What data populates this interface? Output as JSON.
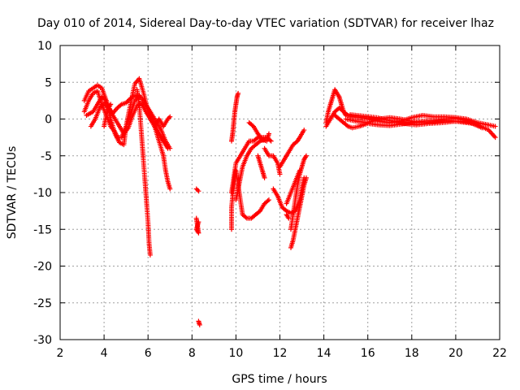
{
  "chart_data": {
    "type": "scatter",
    "title": "Day 010 of 2014, Sidereal Day-to-day VTEC variation (SDTVAR) for receiver lhaz",
    "xlabel": "GPS time / hours",
    "ylabel": "SDTVAR / TECUs",
    "xlim": [
      2,
      22
    ],
    "ylim": [
      -30,
      10
    ],
    "xticks": [
      2,
      4,
      6,
      8,
      10,
      12,
      14,
      16,
      18,
      20,
      22
    ],
    "yticks": [
      10,
      5,
      0,
      -5,
      -10,
      -15,
      -20,
      -25,
      -30
    ],
    "grid": true,
    "marker": "plus",
    "series": [
      {
        "name": "SDTVAR",
        "color": "#ff0000",
        "tracks": [
          [
            [
              3.1,
              2.5
            ],
            [
              3.3,
              3.8
            ],
            [
              3.5,
              4.2
            ],
            [
              3.7,
              4.6
            ],
            [
              3.9,
              4.2
            ],
            [
              4.1,
              2.5
            ],
            [
              4.3,
              0.0
            ],
            [
              4.5,
              -2.0
            ],
            [
              4.7,
              -3.2
            ],
            [
              4.9,
              -3.5
            ],
            [
              5.0,
              -1.0
            ],
            [
              5.2,
              2.0
            ],
            [
              5.4,
              4.8
            ],
            [
              5.6,
              5.5
            ],
            [
              5.8,
              3.5
            ],
            [
              6.0,
              1.0
            ],
            [
              6.3,
              -1.0
            ],
            [
              6.6,
              -2.5
            ],
            [
              6.9,
              -4.0
            ]
          ],
          [
            [
              3.1,
              1.0
            ],
            [
              3.3,
              2.5
            ],
            [
              3.5,
              3.5
            ],
            [
              3.7,
              3.8
            ],
            [
              3.9,
              2.0
            ],
            [
              4.1,
              0.5
            ],
            [
              4.3,
              -1.0
            ],
            [
              4.5,
              -1.8
            ],
            [
              4.6,
              -2.5
            ],
            [
              4.8,
              -2.5
            ],
            [
              5.0,
              -1.0
            ],
            [
              5.2,
              0.5
            ],
            [
              5.4,
              2.5
            ],
            [
              5.6,
              3.2
            ],
            [
              5.8,
              2.5
            ],
            [
              6.0,
              1.5
            ],
            [
              6.2,
              0.5
            ],
            [
              6.4,
              -0.5
            ],
            [
              6.6,
              -1.5
            ],
            [
              6.8,
              -3.0
            ],
            [
              7.0,
              -4.0
            ]
          ],
          [
            [
              3.2,
              0.5
            ],
            [
              3.5,
              1.0
            ],
            [
              3.7,
              2.0
            ],
            [
              3.9,
              3.0
            ],
            [
              4.1,
              2.5
            ],
            [
              4.3,
              1.0
            ],
            [
              4.5,
              0.0
            ],
            [
              4.7,
              -1.0
            ],
            [
              4.9,
              -2.0
            ],
            [
              5.1,
              -1.2
            ],
            [
              5.3,
              0.5
            ],
            [
              5.5,
              1.8
            ],
            [
              5.7,
              2.2
            ],
            [
              5.9,
              1.0
            ],
            [
              6.1,
              0.0
            ],
            [
              6.3,
              -1.0
            ],
            [
              6.5,
              0.0
            ],
            [
              6.7,
              -1.0
            ],
            [
              6.9,
              0.0
            ],
            [
              7.0,
              0.3
            ]
          ],
          [
            [
              3.4,
              -1.0
            ],
            [
              3.6,
              0.0
            ],
            [
              3.8,
              1.5
            ],
            [
              4.0,
              2.2
            ],
            [
              4.2,
              1.5
            ],
            [
              4.4,
              0.8
            ],
            [
              4.6,
              1.5
            ],
            [
              4.8,
              2.0
            ],
            [
              5.0,
              2.2
            ],
            [
              5.2,
              2.8
            ],
            [
              5.4,
              3.2
            ],
            [
              5.6,
              3.0
            ]
          ],
          [
            [
              4.0,
              -1.0
            ],
            [
              4.1,
              0.5
            ],
            [
              4.2,
              1.5
            ],
            [
              4.3,
              2.0
            ]
          ],
          [
            [
              5.5,
              4.0
            ],
            [
              5.6,
              2.0
            ],
            [
              5.7,
              -2.0
            ],
            [
              5.8,
              -6.0
            ],
            [
              5.9,
              -10.0
            ],
            [
              6.0,
              -14.0
            ],
            [
              6.05,
              -17.0
            ],
            [
              6.1,
              -18.5
            ]
          ],
          [
            [
              6.3,
              -1.0
            ],
            [
              6.5,
              -3.0
            ],
            [
              6.7,
              -5.0
            ],
            [
              6.8,
              -7.0
            ],
            [
              6.9,
              -8.5
            ],
            [
              7.0,
              -9.5
            ]
          ],
          [
            [
              8.2,
              -9.5
            ],
            [
              8.3,
              -9.8
            ]
          ],
          [
            [
              8.2,
              -13.5
            ],
            [
              8.25,
              -14.5
            ],
            [
              8.3,
              -15.5
            ],
            [
              8.2,
              -15.0
            ],
            [
              8.3,
              -14.0
            ]
          ],
          [
            [
              8.3,
              -27.5
            ],
            [
              8.35,
              -28.0
            ]
          ],
          [
            [
              9.8,
              -15.0
            ],
            [
              9.8,
              -12.0
            ],
            [
              9.9,
              -9.0
            ],
            [
              10.0,
              -7.0
            ],
            [
              10.1,
              -9.0
            ],
            [
              10.2,
              -11.0
            ],
            [
              10.3,
              -13.0
            ],
            [
              10.5,
              -13.5
            ],
            [
              10.7,
              -13.5
            ],
            [
              10.9,
              -13.0
            ],
            [
              11.1,
              -12.5
            ],
            [
              11.3,
              -11.5
            ],
            [
              11.5,
              -11.0
            ]
          ],
          [
            [
              9.8,
              -10.0
            ],
            [
              9.9,
              -8.0
            ],
            [
              10.0,
              -6.0
            ],
            [
              10.2,
              -5.0
            ],
            [
              10.4,
              -4.0
            ],
            [
              10.6,
              -3.0
            ],
            [
              10.8,
              -3.0
            ],
            [
              11.0,
              -2.5
            ],
            [
              11.2,
              -2.5
            ],
            [
              11.4,
              -2.5
            ],
            [
              11.6,
              -3.0
            ]
          ],
          [
            [
              10.0,
              -11.0
            ],
            [
              10.1,
              -9.5
            ],
            [
              10.2,
              -8.0
            ],
            [
              10.3,
              -6.5
            ],
            [
              10.5,
              -5.0
            ],
            [
              10.7,
              -4.0
            ],
            [
              10.9,
              -3.5
            ],
            [
              11.1,
              -3.0
            ],
            [
              11.3,
              -2.8
            ]
          ],
          [
            [
              9.8,
              -3.0
            ],
            [
              9.85,
              -2.0
            ],
            [
              9.9,
              -0.5
            ],
            [
              9.95,
              1.0
            ],
            [
              10.0,
              2.0
            ],
            [
              10.05,
              3.0
            ],
            [
              10.1,
              3.5
            ]
          ],
          [
            [
              10.6,
              -0.5
            ],
            [
              10.8,
              -1.0
            ],
            [
              11.0,
              -2.0
            ],
            [
              11.2,
              -2.8
            ],
            [
              11.4,
              -3.0
            ],
            [
              11.5,
              -2.0
            ]
          ],
          [
            [
              11.0,
              -5.0
            ],
            [
              11.1,
              -6.0
            ],
            [
              11.2,
              -7.0
            ],
            [
              11.3,
              -8.0
            ]
          ],
          [
            [
              11.3,
              -4.0
            ],
            [
              11.5,
              -5.0
            ],
            [
              11.7,
              -5.0
            ],
            [
              11.9,
              -6.0
            ],
            [
              12.0,
              -7.5
            ]
          ],
          [
            [
              11.7,
              -9.5
            ],
            [
              11.9,
              -10.5
            ],
            [
              12.1,
              -12.0
            ],
            [
              12.3,
              -12.5
            ],
            [
              12.5,
              -12.8
            ],
            [
              12.7,
              -12.5
            ],
            [
              12.9,
              -11.0
            ],
            [
              13.0,
              -9.5
            ],
            [
              13.1,
              -8.0
            ]
          ],
          [
            [
              12.0,
              -6.5
            ],
            [
              12.2,
              -5.5
            ],
            [
              12.4,
              -4.5
            ],
            [
              12.6,
              -3.5
            ],
            [
              12.8,
              -3.0
            ],
            [
              12.9,
              -2.5
            ],
            [
              13.1,
              -1.5
            ]
          ],
          [
            [
              12.3,
              -13.0
            ],
            [
              12.4,
              -13.5
            ]
          ],
          [
            [
              12.5,
              -17.5
            ],
            [
              12.6,
              -16.5
            ],
            [
              12.7,
              -15.0
            ],
            [
              12.8,
              -13.5
            ],
            [
              12.9,
              -12.0
            ],
            [
              13.0,
              -10.5
            ],
            [
              13.1,
              -9.0
            ],
            [
              13.2,
              -8.0
            ]
          ],
          [
            [
              12.5,
              -15.0
            ],
            [
              12.6,
              -13.0
            ],
            [
              12.7,
              -11.0
            ],
            [
              12.8,
              -9.0
            ],
            [
              12.9,
              -7.5
            ],
            [
              13.0,
              -6.5
            ],
            [
              13.1,
              -5.5
            ],
            [
              13.2,
              -5.0
            ]
          ],
          [
            [
              12.3,
              -11.5
            ],
            [
              12.5,
              -10.0
            ],
            [
              12.7,
              -8.5
            ],
            [
              12.9,
              -7.0
            ]
          ],
          [
            [
              14.1,
              -0.5
            ],
            [
              14.2,
              1.0
            ],
            [
              14.3,
              2.0
            ],
            [
              14.4,
              3.0
            ],
            [
              14.5,
              4.0
            ],
            [
              14.6,
              3.5
            ],
            [
              14.7,
              3.0
            ],
            [
              14.8,
              2.0
            ],
            [
              14.9,
              1.0
            ],
            [
              15.0,
              0.5
            ]
          ],
          [
            [
              14.1,
              -1.0
            ],
            [
              14.3,
              0.0
            ],
            [
              14.5,
              1.0
            ],
            [
              14.7,
              1.5
            ],
            [
              14.9,
              1.0
            ],
            [
              15.1,
              0.5
            ],
            [
              15.3,
              0.3
            ],
            [
              15.6,
              0.2
            ],
            [
              16.0,
              0.0
            ],
            [
              16.5,
              -0.3
            ],
            [
              17.0,
              -0.5
            ],
            [
              17.5,
              -0.3
            ],
            [
              18.0,
              0.2
            ],
            [
              18.5,
              0.5
            ],
            [
              19.0,
              0.3
            ],
            [
              19.5,
              0.3
            ],
            [
              20.0,
              0.2
            ],
            [
              20.5,
              0.0
            ],
            [
              21.0,
              -0.5
            ],
            [
              21.5,
              -0.8
            ],
            [
              21.8,
              -1.0
            ]
          ],
          [
            [
              14.5,
              0.5
            ],
            [
              14.7,
              0.0
            ],
            [
              14.9,
              -0.5
            ],
            [
              15.1,
              -1.0
            ],
            [
              15.3,
              -1.2
            ],
            [
              15.6,
              -1.0
            ],
            [
              16.0,
              -0.6
            ],
            [
              16.5,
              -0.8
            ],
            [
              17.0,
              -0.9
            ],
            [
              17.5,
              -0.7
            ],
            [
              18.0,
              -0.5
            ],
            [
              18.5,
              -0.3
            ],
            [
              19.0,
              -0.2
            ],
            [
              19.5,
              0.0
            ],
            [
              20.0,
              0.1
            ],
            [
              20.5,
              -0.2
            ],
            [
              21.0,
              -0.8
            ],
            [
              21.5,
              -1.5
            ],
            [
              21.8,
              -2.5
            ]
          ],
          [
            [
              15.0,
              0.0
            ],
            [
              15.5,
              -0.3
            ],
            [
              16.0,
              -0.5
            ],
            [
              16.5,
              0.0
            ],
            [
              17.0,
              0.2
            ],
            [
              17.5,
              0.0
            ],
            [
              18.0,
              -0.3
            ],
            [
              18.5,
              -0.5
            ],
            [
              19.0,
              -0.4
            ],
            [
              19.5,
              -0.2
            ],
            [
              20.0,
              -0.3
            ],
            [
              20.5,
              -0.5
            ],
            [
              21.0,
              -0.7
            ]
          ],
          [
            [
              15.2,
              0.6
            ],
            [
              15.8,
              0.4
            ],
            [
              16.4,
              0.2
            ],
            [
              17.0,
              -0.2
            ],
            [
              17.6,
              -0.6
            ],
            [
              18.2,
              -0.8
            ],
            [
              18.8,
              -0.6
            ],
            [
              19.4,
              -0.5
            ],
            [
              20.0,
              -0.3
            ],
            [
              20.6,
              -0.4
            ],
            [
              21.2,
              -1.2
            ]
          ]
        ]
      }
    ]
  }
}
